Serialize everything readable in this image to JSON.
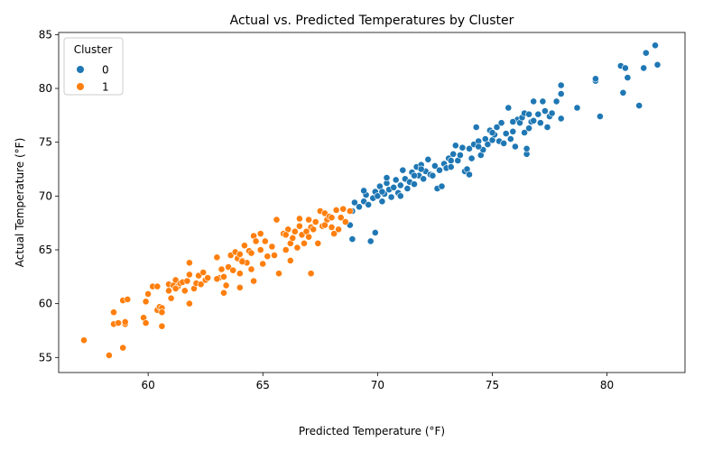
{
  "chart_data": {
    "type": "scatter",
    "title": "Actual vs. Predicted Temperatures by Cluster",
    "xlabel": "Predicted Temperature (°F)",
    "ylabel": "Actual Temperature (°F)",
    "xlim": [
      56.1,
      83.4
    ],
    "ylim": [
      53.6,
      85.2
    ],
    "xticks": [
      60,
      65,
      70,
      75,
      80
    ],
    "yticks": [
      55,
      60,
      65,
      70,
      75,
      80,
      85
    ],
    "grid": false,
    "legend": {
      "title": "Cluster",
      "placement": "top-left"
    },
    "series": [
      {
        "name": "0",
        "color": "#1f77b4",
        "points": [
          [
            68.8,
            67.3
          ],
          [
            68.9,
            66.0
          ],
          [
            69.7,
            65.8
          ],
          [
            69.9,
            66.6
          ],
          [
            68.9,
            68.6
          ],
          [
            69.0,
            69.4
          ],
          [
            69.2,
            69.0
          ],
          [
            69.4,
            69.5
          ],
          [
            69.5,
            70.1
          ],
          [
            69.6,
            69.2
          ],
          [
            69.8,
            69.8
          ],
          [
            69.9,
            70.4
          ],
          [
            70.0,
            70.0
          ],
          [
            70.1,
            70.9
          ],
          [
            70.2,
            69.5
          ],
          [
            70.3,
            70.2
          ],
          [
            70.4,
            71.2
          ],
          [
            70.5,
            70.6
          ],
          [
            70.6,
            69.9
          ],
          [
            70.7,
            70.8
          ],
          [
            70.8,
            71.5
          ],
          [
            70.9,
            70.3
          ],
          [
            71.0,
            71.0
          ],
          [
            71.1,
            72.4
          ],
          [
            71.2,
            71.6
          ],
          [
            71.3,
            70.7
          ],
          [
            71.4,
            71.3
          ],
          [
            71.5,
            72.2
          ],
          [
            71.6,
            71.1
          ],
          [
            71.7,
            72.7
          ],
          [
            71.8,
            71.9
          ],
          [
            71.9,
            72.9
          ],
          [
            72.0,
            71.6
          ],
          [
            72.1,
            72.3
          ],
          [
            72.2,
            73.4
          ],
          [
            72.3,
            72.0
          ],
          [
            72.5,
            72.8
          ],
          [
            72.6,
            70.7
          ],
          [
            72.8,
            70.9
          ],
          [
            72.7,
            72.4
          ],
          [
            72.9,
            73.0
          ],
          [
            73.0,
            72.6
          ],
          [
            73.1,
            73.5
          ],
          [
            73.2,
            72.7
          ],
          [
            73.3,
            73.9
          ],
          [
            73.4,
            74.7
          ],
          [
            73.5,
            73.3
          ],
          [
            73.6,
            73.8
          ],
          [
            73.8,
            72.3
          ],
          [
            73.9,
            72.5
          ],
          [
            74.0,
            72.0
          ],
          [
            74.0,
            74.4
          ],
          [
            74.1,
            73.5
          ],
          [
            74.2,
            74.8
          ],
          [
            74.3,
            76.4
          ],
          [
            74.4,
            75.1
          ],
          [
            74.5,
            73.8
          ],
          [
            74.6,
            74.3
          ],
          [
            74.7,
            75.3
          ],
          [
            74.8,
            74.8
          ],
          [
            74.9,
            76.1
          ],
          [
            75.0,
            75.2
          ],
          [
            75.1,
            75.7
          ],
          [
            75.2,
            76.4
          ],
          [
            75.3,
            75.1
          ],
          [
            75.4,
            76.8
          ],
          [
            75.5,
            74.9
          ],
          [
            75.6,
            75.8
          ],
          [
            75.7,
            78.2
          ],
          [
            75.8,
            75.3
          ],
          [
            75.9,
            76.0
          ],
          [
            76.0,
            74.6
          ],
          [
            76.1,
            77.1
          ],
          [
            76.2,
            76.8
          ],
          [
            76.3,
            77.3
          ],
          [
            76.4,
            77.7
          ],
          [
            76.4,
            75.9
          ],
          [
            76.5,
            73.9
          ],
          [
            76.5,
            74.4
          ],
          [
            76.6,
            76.3
          ],
          [
            76.7,
            76.9
          ],
          [
            76.8,
            77.0
          ],
          [
            76.8,
            78.8
          ],
          [
            77.0,
            77.6
          ],
          [
            77.1,
            76.8
          ],
          [
            77.2,
            78.8
          ],
          [
            77.3,
            77.9
          ],
          [
            77.4,
            76.4
          ],
          [
            77.5,
            77.4
          ],
          [
            77.6,
            77.7
          ],
          [
            77.8,
            78.8
          ],
          [
            78.0,
            77.2
          ],
          [
            78.0,
            79.5
          ],
          [
            78.0,
            80.3
          ],
          [
            78.7,
            78.2
          ],
          [
            79.5,
            80.7
          ],
          [
            79.5,
            80.9
          ],
          [
            79.7,
            77.4
          ],
          [
            80.6,
            82.1
          ],
          [
            80.7,
            79.6
          ],
          [
            80.8,
            81.9
          ],
          [
            80.9,
            81.0
          ],
          [
            81.4,
            78.4
          ],
          [
            81.6,
            81.9
          ],
          [
            81.7,
            83.3
          ],
          [
            82.1,
            84.0
          ],
          [
            82.2,
            82.2
          ],
          [
            69.4,
            70.5
          ],
          [
            70.4,
            71.7
          ],
          [
            71.0,
            70.0
          ],
          [
            71.6,
            71.9
          ],
          [
            72.4,
            71.9
          ],
          [
            73.2,
            73.3
          ],
          [
            73.7,
            74.5
          ],
          [
            74.4,
            74.6
          ],
          [
            75.0,
            75.9
          ],
          [
            75.9,
            76.9
          ],
          [
            76.6,
            77.6
          ],
          [
            70.2,
            70.4
          ],
          [
            71.9,
            72.5
          ]
        ]
      },
      {
        "name": "1",
        "color": "#ff7f0e",
        "points": [
          [
            57.2,
            56.6
          ],
          [
            58.3,
            55.2
          ],
          [
            58.5,
            58.1
          ],
          [
            58.5,
            59.2
          ],
          [
            58.7,
            58.2
          ],
          [
            58.9,
            55.9
          ],
          [
            59.0,
            58.1
          ],
          [
            59.0,
            58.3
          ],
          [
            58.9,
            60.3
          ],
          [
            59.1,
            60.4
          ],
          [
            59.8,
            58.7
          ],
          [
            59.9,
            58.2
          ],
          [
            59.9,
            60.2
          ],
          [
            60.0,
            60.9
          ],
          [
            60.2,
            61.6
          ],
          [
            60.4,
            59.4
          ],
          [
            60.4,
            61.6
          ],
          [
            60.5,
            59.7
          ],
          [
            60.6,
            59.6
          ],
          [
            60.6,
            57.9
          ],
          [
            60.6,
            59.2
          ],
          [
            60.9,
            61.2
          ],
          [
            60.9,
            61.8
          ],
          [
            61.0,
            60.5
          ],
          [
            61.1,
            61.7
          ],
          [
            61.2,
            62.2
          ],
          [
            61.3,
            61.6
          ],
          [
            61.4,
            61.9
          ],
          [
            61.5,
            62.0
          ],
          [
            61.6,
            61.2
          ],
          [
            61.7,
            62.1
          ],
          [
            61.8,
            62.7
          ],
          [
            61.8,
            63.8
          ],
          [
            61.8,
            60.0
          ],
          [
            62.0,
            61.4
          ],
          [
            62.1,
            61.9
          ],
          [
            62.2,
            62.6
          ],
          [
            62.3,
            61.8
          ],
          [
            62.4,
            62.9
          ],
          [
            62.5,
            62.2
          ],
          [
            62.6,
            62.4
          ],
          [
            63.0,
            64.3
          ],
          [
            63.1,
            62.4
          ],
          [
            63.2,
            63.2
          ],
          [
            63.3,
            61.0
          ],
          [
            63.3,
            62.5
          ],
          [
            63.4,
            61.7
          ],
          [
            63.5,
            63.4
          ],
          [
            63.6,
            64.5
          ],
          [
            63.7,
            63.1
          ],
          [
            63.8,
            64.8
          ],
          [
            63.9,
            64.2
          ],
          [
            64.0,
            64.6
          ],
          [
            64.0,
            62.8
          ],
          [
            64.0,
            61.5
          ],
          [
            64.1,
            64.0
          ],
          [
            64.2,
            65.4
          ],
          [
            64.3,
            63.8
          ],
          [
            64.4,
            64.9
          ],
          [
            64.5,
            63.2
          ],
          [
            64.5,
            64.7
          ],
          [
            64.6,
            62.1
          ],
          [
            64.6,
            66.3
          ],
          [
            64.7,
            65.8
          ],
          [
            64.9,
            65.0
          ],
          [
            64.9,
            66.5
          ],
          [
            65.0,
            63.7
          ],
          [
            65.1,
            65.8
          ],
          [
            65.2,
            64.4
          ],
          [
            65.4,
            65.3
          ],
          [
            65.5,
            64.5
          ],
          [
            65.6,
            67.8
          ],
          [
            65.7,
            62.8
          ],
          [
            65.9,
            66.5
          ],
          [
            66.0,
            65.0
          ],
          [
            66.1,
            66.9
          ],
          [
            66.2,
            64.0
          ],
          [
            66.2,
            65.6
          ],
          [
            66.3,
            66.1
          ],
          [
            66.4,
            66.7
          ],
          [
            66.5,
            65.2
          ],
          [
            66.6,
            67.2
          ],
          [
            66.6,
            67.9
          ],
          [
            66.7,
            66.4
          ],
          [
            66.8,
            65.6
          ],
          [
            66.9,
            66.7
          ],
          [
            67.0,
            67.8
          ],
          [
            67.0,
            66.2
          ],
          [
            67.1,
            62.8
          ],
          [
            67.1,
            67.1
          ],
          [
            67.2,
            66.9
          ],
          [
            67.3,
            67.6
          ],
          [
            67.4,
            65.6
          ],
          [
            67.5,
            68.6
          ],
          [
            67.6,
            67.2
          ],
          [
            67.7,
            68.4
          ],
          [
            67.8,
            67.8
          ],
          [
            67.9,
            68.1
          ],
          [
            68.0,
            67.1
          ],
          [
            68.1,
            66.5
          ],
          [
            68.2,
            68.7
          ],
          [
            68.3,
            66.9
          ],
          [
            68.4,
            68.0
          ],
          [
            68.5,
            68.8
          ],
          [
            68.6,
            67.6
          ],
          [
            68.8,
            68.6
          ],
          [
            61.2,
            61.4
          ],
          [
            63.0,
            62.3
          ],
          [
            64.1,
            63.9
          ],
          [
            66.0,
            66.4
          ],
          [
            67.7,
            67.3
          ],
          [
            68.0,
            68.0
          ]
        ]
      }
    ]
  }
}
